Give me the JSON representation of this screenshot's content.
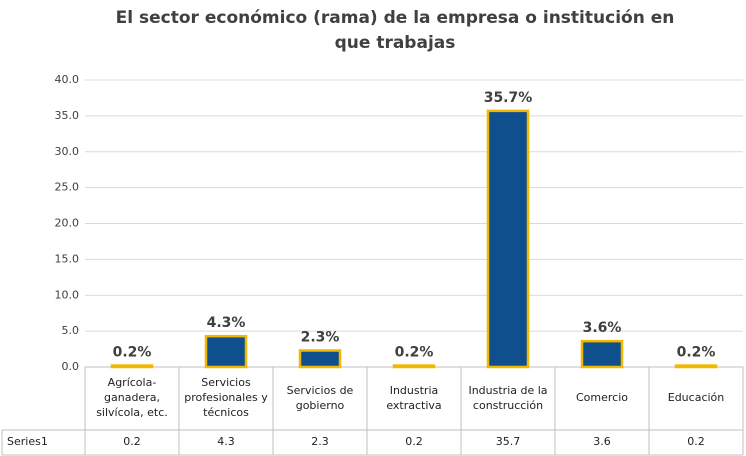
{
  "chart_data": {
    "type": "bar",
    "title": "El sector económico (rama) de la empresa o institución en que trabajas",
    "categories": [
      "Agrícola-ganadera, silvícola, etc.",
      "Servicios profesionales y técnicos",
      "Servicios de gobierno",
      "Industria extractiva",
      "Industria de la construcción",
      "Comercio",
      "Educación"
    ],
    "series": [
      {
        "name": "Series1",
        "color": "#0f4f8e",
        "values": [
          0.2,
          4.3,
          2.3,
          0.2,
          35.7,
          3.6,
          0.2
        ],
        "value_labels": [
          "0.2%",
          "4.3%",
          "2.3%",
          "0.2%",
          "35.7%",
          "3.6%",
          "0.2%"
        ]
      }
    ],
    "ylim": [
      0,
      40
    ],
    "yticks": [
      {
        "value": 0,
        "label": "0.0"
      },
      {
        "value": 5,
        "label": "5.0"
      },
      {
        "value": 10,
        "label": "10.0"
      },
      {
        "value": 15,
        "label": "15.0"
      },
      {
        "value": 20,
        "label": "20.0"
      },
      {
        "value": 25,
        "label": "25.0"
      },
      {
        "value": 30,
        "label": "30.0"
      },
      {
        "value": 35,
        "label": "35.0"
      },
      {
        "value": 40,
        "label": "40.0"
      }
    ],
    "grid": true
  }
}
